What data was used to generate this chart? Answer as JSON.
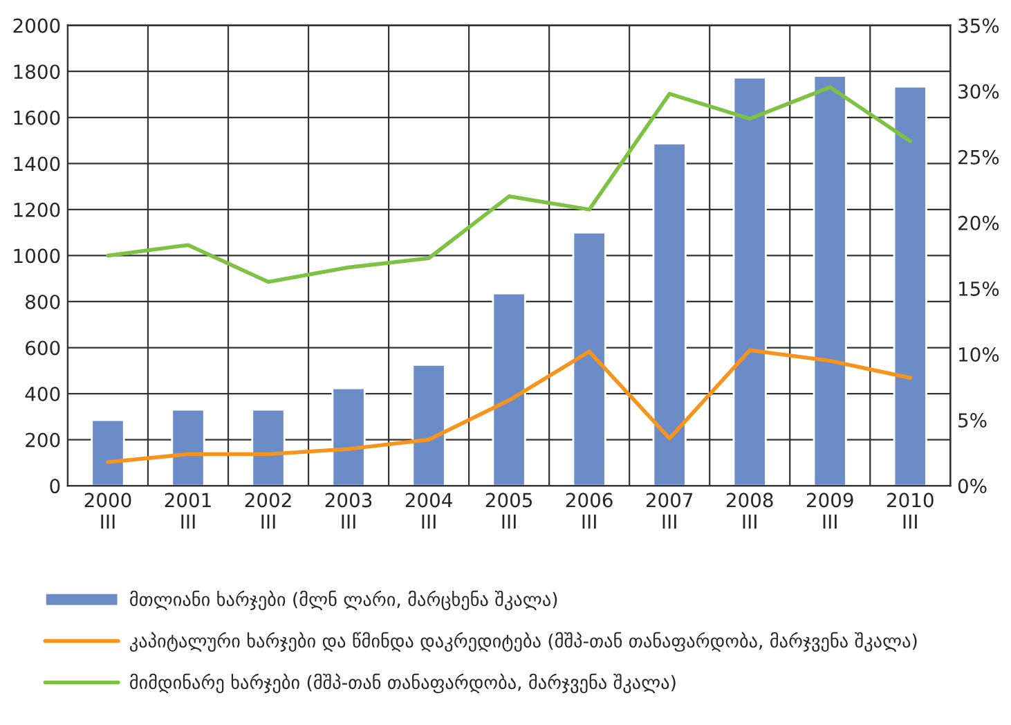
{
  "chart_data": {
    "type": "bar",
    "categories": [
      "2000\nIII",
      "2001\nIII",
      "2002\nIII",
      "2003\nIII",
      "2004\nIII",
      "2005\nIII",
      "2006\nIII",
      "2007\nIII",
      "2008\nIII",
      "2009\nIII",
      "2010\nIII"
    ],
    "series": [
      {
        "name": "მთლიანი ხარჯები (მლნ ლარი, მარცხენა შკალა)",
        "color": "#6b8cc7",
        "values": [
          286,
          331,
          331,
          424,
          525,
          836,
          1100,
          1487,
          1773,
          1781,
          1734
        ]
      },
      {
        "name": "კაპიტალური ხარჯები და წმინდა დაკრედიტება (მშპ-თან თანაფარდობა, მარჯვენა შკალა)",
        "type": "line",
        "axis": "y2",
        "color": "#f7941d",
        "values": [
          1.8,
          2.4,
          2.4,
          2.8,
          3.5,
          6.5,
          10.2,
          3.6,
          10.3,
          9.5,
          8.2
        ]
      },
      {
        "name": "მიმდინარე ხარჯები (მშპ-თან თანაფარდობა, მარჯვენა შკალა)",
        "type": "line",
        "axis": "y2",
        "color": "#7dc242",
        "values": [
          17.5,
          18.3,
          15.5,
          16.6,
          17.3,
          22.0,
          21.0,
          29.8,
          27.9,
          30.3,
          26.2
        ]
      }
    ],
    "ylim": [
      0,
      2000
    ],
    "yticks": [
      0,
      200,
      400,
      600,
      800,
      1000,
      1200,
      1400,
      1600,
      1800,
      2000
    ],
    "y2lim": [
      0,
      35
    ],
    "y2ticks": [
      {
        "value": 0,
        "label": "0%"
      },
      {
        "value": 5,
        "label": "5%"
      },
      {
        "value": 10,
        "label": "10%"
      },
      {
        "value": 15,
        "label": "15%"
      },
      {
        "value": 20,
        "label": "20%"
      },
      {
        "value": 25,
        "label": "25%"
      },
      {
        "value": 30,
        "label": "30%"
      },
      {
        "value": 35,
        "label": "35%"
      }
    ],
    "grid": true,
    "legend": "bottom"
  }
}
